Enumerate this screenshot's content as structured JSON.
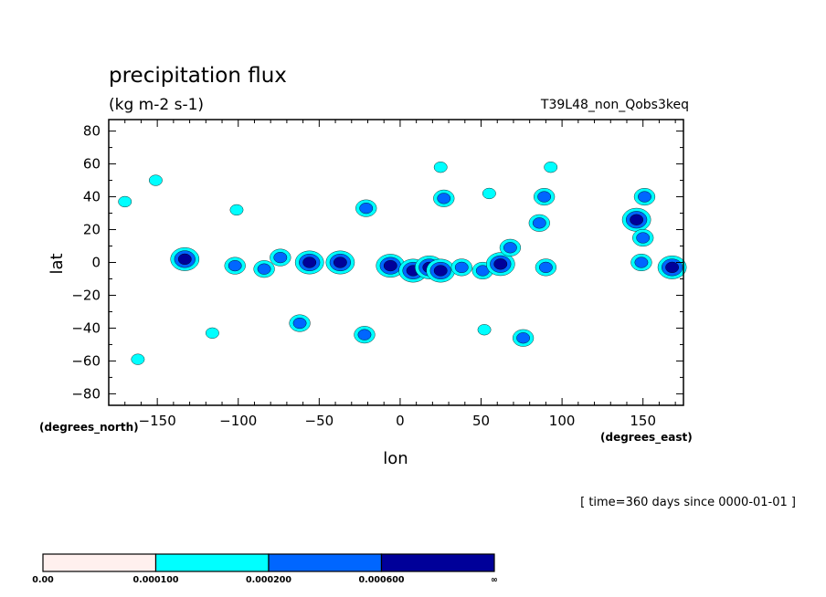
{
  "chart_data": {
    "type": "heatmap",
    "title": "precipitation flux",
    "subtitle": "(kg m-2 s-1)",
    "run_label": "T39L48_non_Qobs3keq",
    "xlabel": "lon",
    "ylabel": "lat",
    "x_units": "(degrees_east)",
    "y_units": "(degrees_north)",
    "xlim": [
      -180,
      175
    ],
    "ylim": [
      -87,
      87
    ],
    "x_ticks": [
      -150,
      -100,
      -50,
      0,
      50,
      100,
      150
    ],
    "x_tick_labels": [
      "−150",
      "−100",
      "−50",
      "0",
      "50",
      "100",
      "150"
    ],
    "y_ticks": [
      80,
      60,
      40,
      20,
      0,
      -20,
      -40,
      -60,
      -80
    ],
    "y_tick_labels": [
      "80",
      "60",
      "40",
      "20",
      "0",
      "−20",
      "−40",
      "−60",
      "−80"
    ],
    "time_label": "[ time=360 days since 0000-01-01 ]",
    "levels": [
      0.0,
      0.0001,
      0.0002,
      0.0006
    ],
    "level_labels": [
      "0.00",
      "0.000100",
      "0.000200",
      "0.000600",
      "∞"
    ],
    "level_colors": [
      "#fff0ee",
      "#00ffff",
      "#0066ff",
      "#000099"
    ],
    "contour_regions": [
      {
        "lon": -133,
        "lat": 2,
        "level": 3
      },
      {
        "lon": -102,
        "lat": -2,
        "level": 2
      },
      {
        "lon": -84,
        "lat": -4,
        "level": 2
      },
      {
        "lon": -74,
        "lat": 3,
        "level": 2
      },
      {
        "lon": -56,
        "lat": 0,
        "level": 3
      },
      {
        "lon": -37,
        "lat": 0,
        "level": 3
      },
      {
        "lon": -6,
        "lat": -2,
        "level": 3
      },
      {
        "lon": 8,
        "lat": -5,
        "level": 3
      },
      {
        "lon": 18,
        "lat": -3,
        "level": 3
      },
      {
        "lon": 25,
        "lat": -5,
        "level": 3
      },
      {
        "lon": 38,
        "lat": -3,
        "level": 2
      },
      {
        "lon": 51,
        "lat": -5,
        "level": 2
      },
      {
        "lon": 62,
        "lat": -1,
        "level": 3
      },
      {
        "lon": 68,
        "lat": 9,
        "level": 2
      },
      {
        "lon": 90,
        "lat": -3,
        "level": 2
      },
      {
        "lon": 146,
        "lat": 26,
        "level": 3
      },
      {
        "lon": 150,
        "lat": 15,
        "level": 2
      },
      {
        "lon": 149,
        "lat": 0,
        "level": 2
      },
      {
        "lon": 168,
        "lat": -3,
        "level": 3
      },
      {
        "lon": -21,
        "lat": 33,
        "level": 2
      },
      {
        "lon": 27,
        "lat": 39,
        "level": 2
      },
      {
        "lon": 89,
        "lat": 40,
        "level": 2
      },
      {
        "lon": 86,
        "lat": 24,
        "level": 2
      },
      {
        "lon": 151,
        "lat": 40,
        "level": 2
      },
      {
        "lon": -62,
        "lat": -37,
        "level": 2
      },
      {
        "lon": -22,
        "lat": -44,
        "level": 2
      },
      {
        "lon": 52,
        "lat": -41,
        "level": 1
      },
      {
        "lon": 76,
        "lat": -46,
        "level": 2
      },
      {
        "lon": -116,
        "lat": -43,
        "level": 1
      },
      {
        "lon": -101,
        "lat": 32,
        "level": 1
      },
      {
        "lon": -162,
        "lat": -59,
        "level": 1
      },
      {
        "lon": -170,
        "lat": 37,
        "level": 1
      },
      {
        "lon": -151,
        "lat": 50,
        "level": 1
      },
      {
        "lon": 25,
        "lat": 58,
        "level": 1
      },
      {
        "lon": 55,
        "lat": 42,
        "level": 1
      },
      {
        "lon": 93,
        "lat": 58,
        "level": 1
      }
    ]
  }
}
